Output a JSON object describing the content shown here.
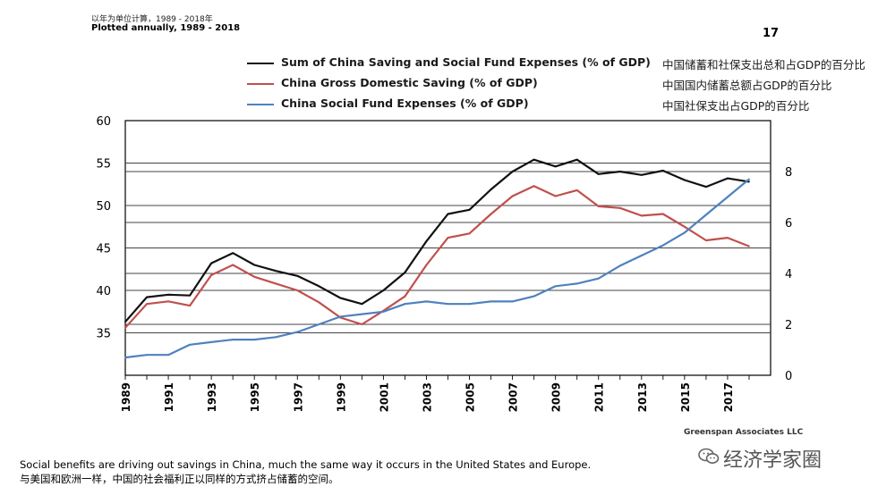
{
  "header": {
    "subtitle_cn": "以年为单位计算，1989 - 2018年",
    "subtitle_en": "Plotted annually, 1989 - 2018",
    "page_number": "17"
  },
  "legend": [
    {
      "label": "Sum of China Saving and Social Fund Expenses (% of GDP)",
      "cn": "中国储蓄和社保支出总和占GDP的百分比",
      "color": "#111111"
    },
    {
      "label": "China Gross Domestic Saving (% of GDP)",
      "cn": "中国国内储蓄总额占GDP的百分比",
      "color": "#c0504d"
    },
    {
      "label": "China Social Fund Expenses (% of GDP)",
      "cn": "中国社保支出占GDP的百分比",
      "color": "#4f81bd"
    }
  ],
  "chart_data": {
    "type": "line",
    "x": [
      1989,
      1990,
      1991,
      1992,
      1993,
      1994,
      1995,
      1996,
      1997,
      1998,
      1999,
      2000,
      2001,
      2002,
      2003,
      2004,
      2005,
      2006,
      2007,
      2008,
      2009,
      2010,
      2011,
      2012,
      2013,
      2014,
      2015,
      2016,
      2017,
      2018
    ],
    "x_tick_labels": [
      "1989",
      "1991",
      "1993",
      "1995",
      "1997",
      "1999",
      "2001",
      "2003",
      "2005",
      "2007",
      "2009",
      "2011",
      "2013",
      "2015",
      "2017"
    ],
    "left_axis": {
      "ylim": [
        30,
        60
      ],
      "ticks": [
        "60",
        "55",
        "50",
        "45",
        "40",
        "35"
      ]
    },
    "right_axis": {
      "ylim": [
        0,
        10
      ],
      "ticks": [
        "8",
        "6",
        "4",
        "2",
        "0"
      ]
    },
    "grid": true,
    "series": [
      {
        "name": "Sum of China Saving and Social Fund Expenses (% of GDP)",
        "axis": "left",
        "color": "#111111",
        "values": [
          36.3,
          39.2,
          39.5,
          39.4,
          43.2,
          44.4,
          43.0,
          42.3,
          41.7,
          40.5,
          39.1,
          38.4,
          40.0,
          42.1,
          45.8,
          49.0,
          49.5,
          51.9,
          54.0,
          55.4,
          54.6,
          55.4,
          53.7,
          54.0,
          53.6,
          54.1,
          53.0,
          52.2,
          53.2,
          52.8
        ]
      },
      {
        "name": "China Gross Domestic Saving (% of GDP)",
        "axis": "left",
        "color": "#c0504d",
        "values": [
          35.6,
          38.4,
          38.7,
          38.2,
          41.8,
          43.0,
          41.6,
          40.8,
          40.0,
          38.6,
          36.8,
          36.0,
          37.6,
          39.3,
          43.0,
          46.2,
          46.7,
          49.0,
          51.1,
          52.3,
          51.1,
          51.8,
          49.9,
          49.7,
          48.8,
          49.0,
          47.5,
          45.9,
          46.2,
          45.2
        ]
      },
      {
        "name": "China Social Fund Expenses (% of GDP)",
        "axis": "right",
        "color": "#4f81bd",
        "values": [
          0.7,
          0.8,
          0.8,
          1.2,
          1.3,
          1.4,
          1.4,
          1.5,
          1.7,
          2.0,
          2.3,
          2.4,
          2.5,
          2.8,
          2.9,
          2.8,
          2.8,
          2.9,
          2.9,
          3.1,
          3.5,
          3.6,
          3.8,
          4.3,
          4.7,
          5.1,
          5.6,
          6.3,
          7.0,
          7.7
        ]
      }
    ]
  },
  "footer": {
    "source": "Greenspan Associates LLC",
    "caption_en": "Social benefits are driving out savings in China, much the same way it occurs in the United States and Europe.",
    "caption_cn": "与美国和欧洲一样，中国的社会福利正以同样的方式挤占储蓄的空间。",
    "watermark": "经济学家圈",
    "watermark_icon": "wechat-icon"
  }
}
